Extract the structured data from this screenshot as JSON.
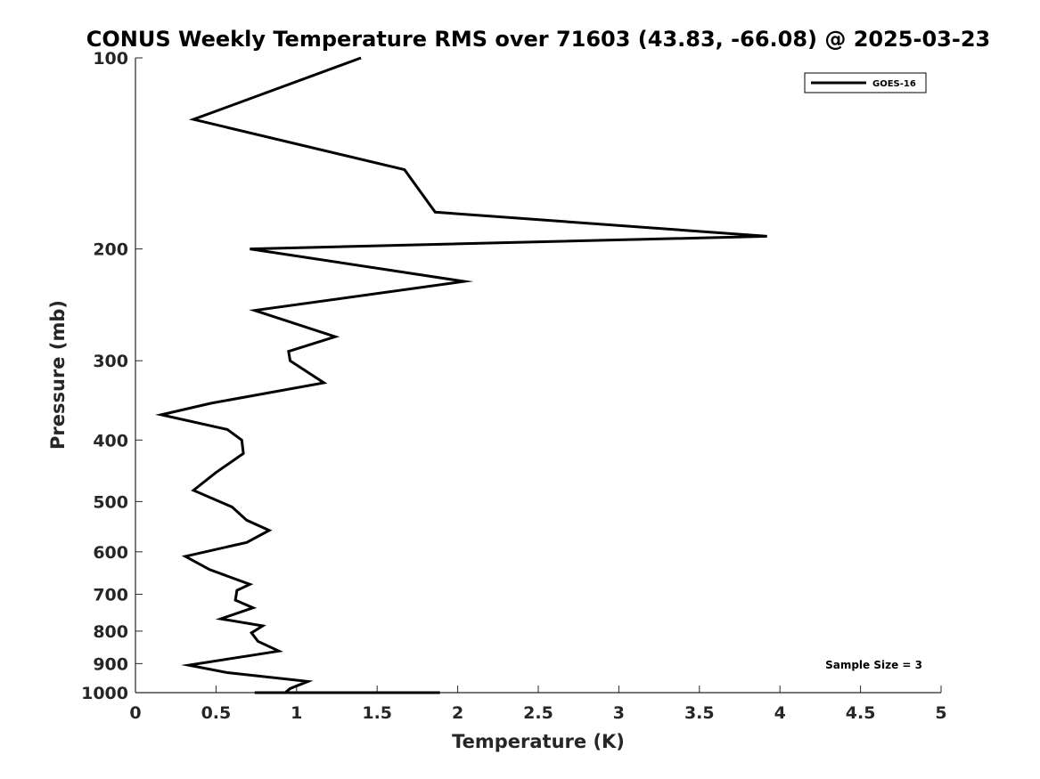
{
  "chart_data": {
    "type": "line",
    "title": "CONUS Weekly Temperature RMS over 71603 (43.83, -66.08) @ 2025-03-23",
    "xlabel": "Temperature (K)",
    "ylabel": "Pressure (mb)",
    "xlim": [
      0,
      5
    ],
    "ylim": [
      1000,
      100
    ],
    "yscale": "log",
    "y_reversed": true,
    "grid": false,
    "legend_position": "top-right",
    "x_ticks": [
      "0",
      "0.5",
      "1",
      "1.5",
      "2",
      "2.5",
      "3",
      "3.5",
      "4",
      "4.5",
      "5"
    ],
    "y_ticks": [
      "100",
      "200",
      "300",
      "400",
      "500",
      "600",
      "700",
      "800",
      "900",
      "1000"
    ],
    "annotation": "Sample Size = 3",
    "series": [
      {
        "name": "GOES-16",
        "color": "#000000",
        "x": [
          1.4,
          0.36,
          1.67,
          1.86,
          3.92,
          0.71,
          2.04,
          0.74,
          1.24,
          0.95,
          0.96,
          1.17,
          0.47,
          0.16,
          0.57,
          0.66,
          0.67,
          0.5,
          0.36,
          0.6,
          0.69,
          0.83,
          0.69,
          0.31,
          0.46,
          0.71,
          0.63,
          0.62,
          0.73,
          0.53,
          0.79,
          0.72,
          0.76,
          0.89,
          0.7,
          0.33,
          0.57,
          1.07,
          0.96,
          0.93,
          1.6,
          1.89,
          1.69,
          0.74,
          0.87
        ],
        "y": [
          100,
          125,
          150,
          175,
          191,
          200,
          225,
          250,
          275,
          290,
          300,
          325,
          350,
          365,
          385,
          400,
          420,
          450,
          480,
          510,
          535,
          555,
          580,
          610,
          640,
          675,
          690,
          715,
          735,
          765,
          785,
          805,
          830,
          860,
          875,
          905,
          930,
          960,
          985,
          1010,
          1040,
          1060,
          1075,
          1090,
          1100
        ]
      }
    ]
  }
}
